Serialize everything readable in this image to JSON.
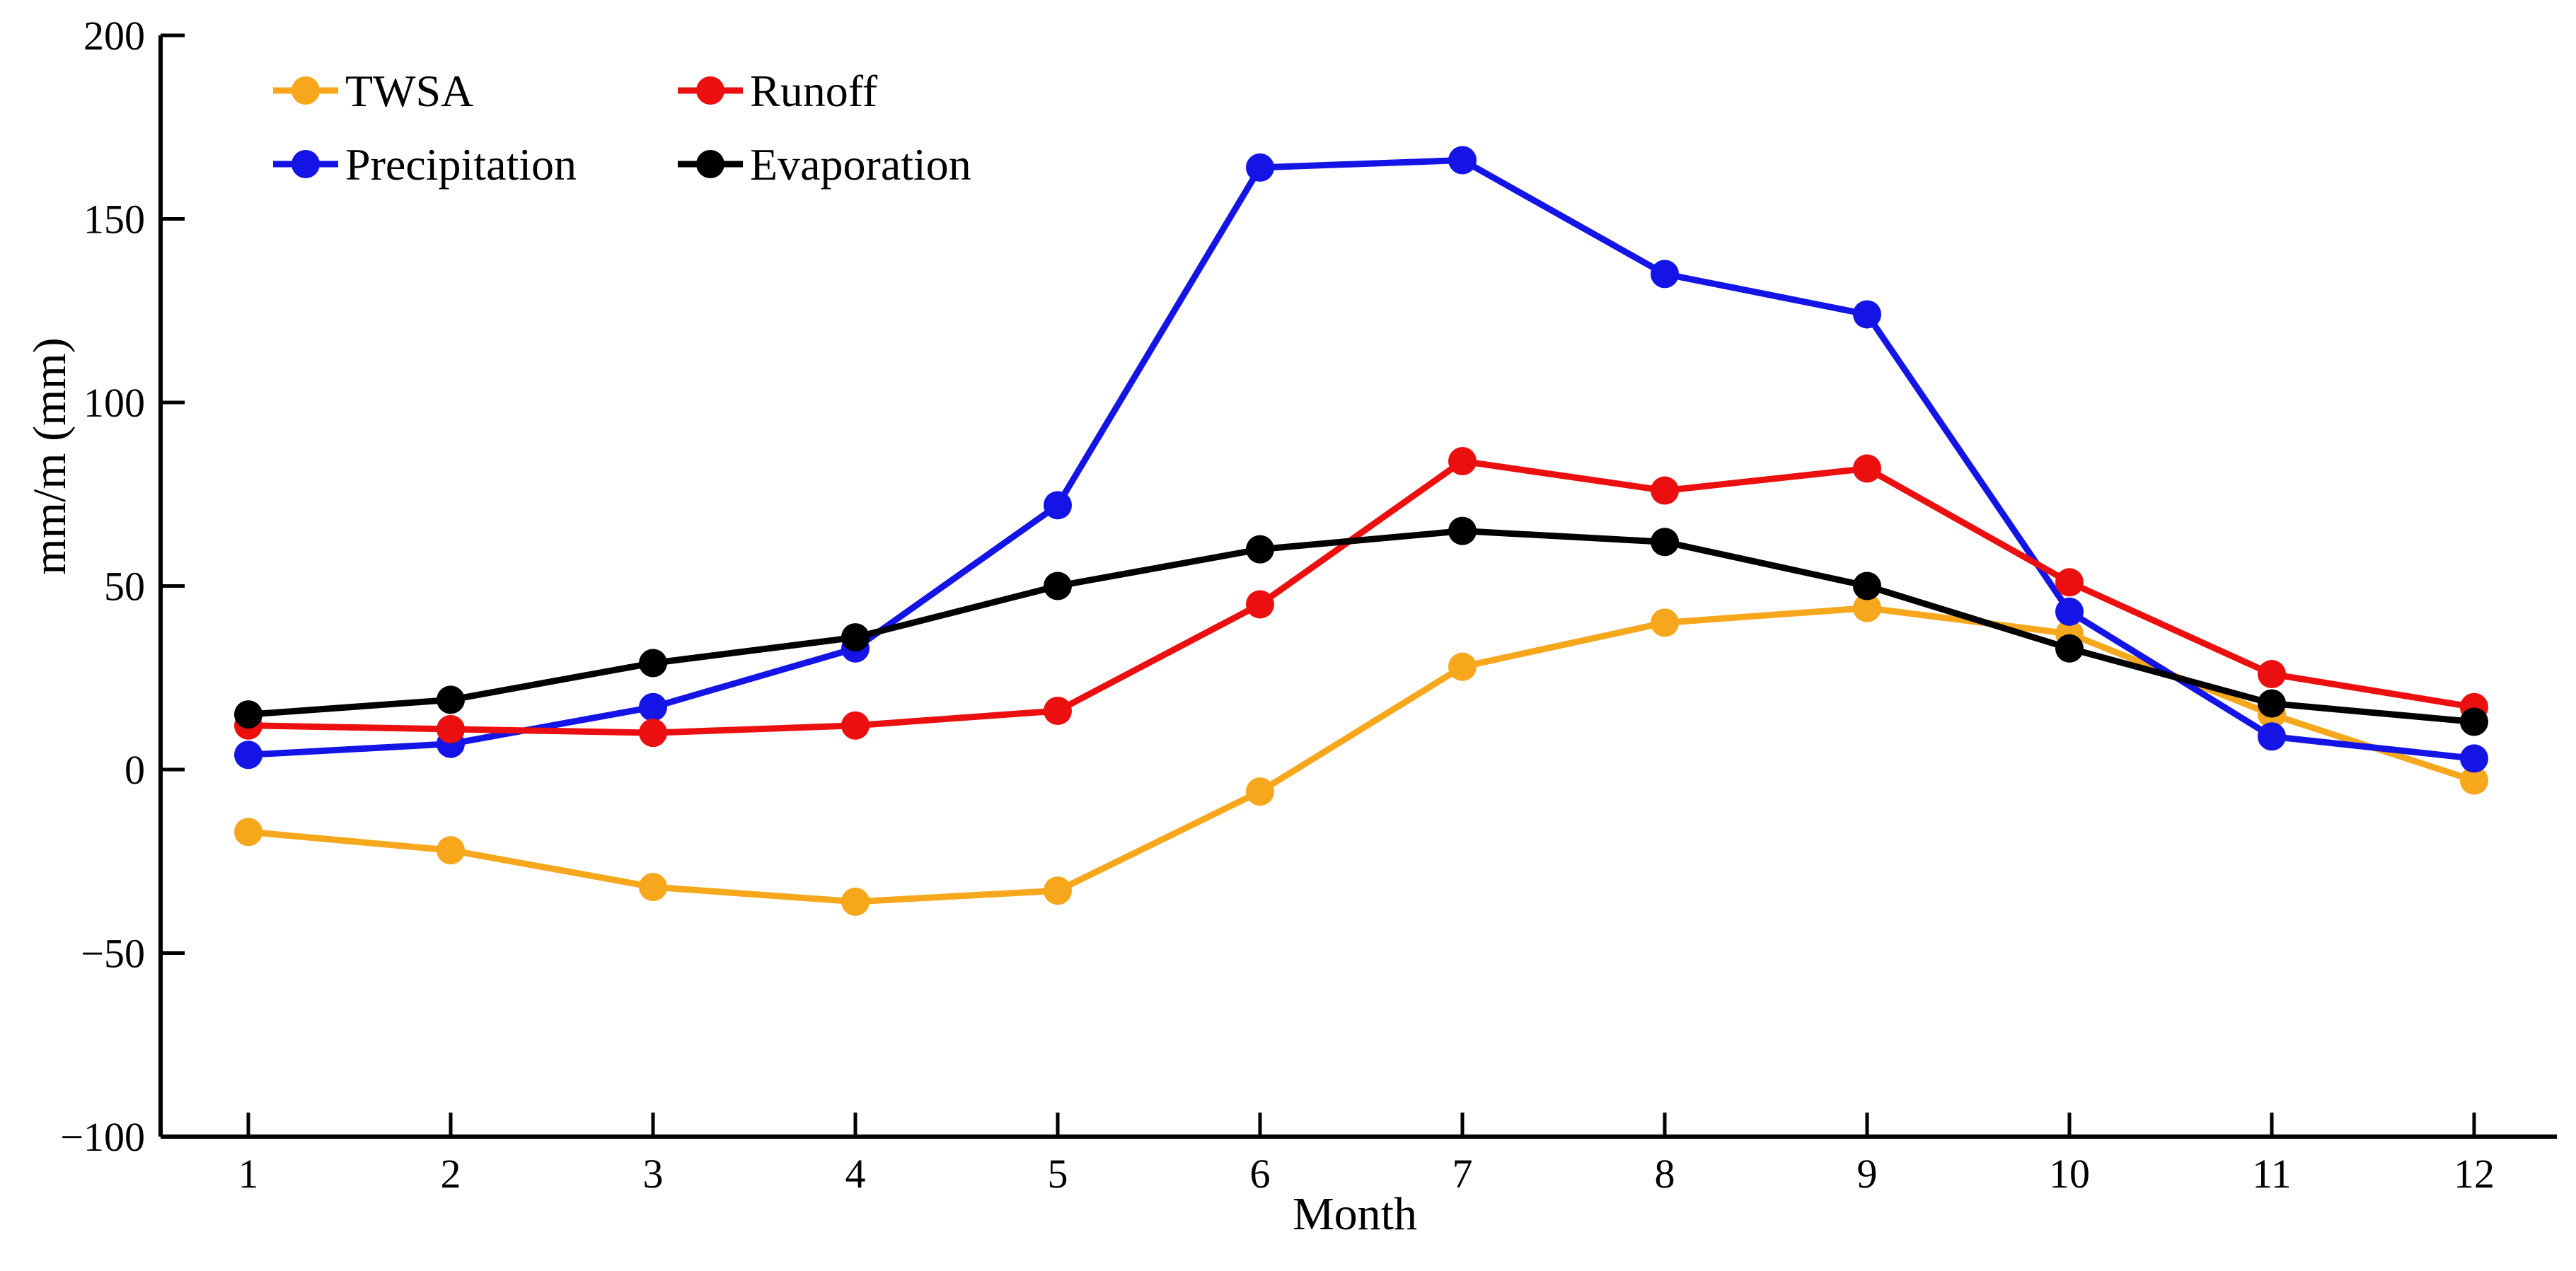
{
  "chart_data": {
    "type": "line",
    "title": "",
    "xlabel": "Month",
    "ylabel": "mm/m (mm)",
    "x": [
      1,
      2,
      3,
      4,
      5,
      6,
      7,
      8,
      9,
      10,
      11,
      12
    ],
    "xlim": [
      0.5,
      12.5
    ],
    "ylim": [
      -100,
      200
    ],
    "yticks": [
      200,
      150,
      100,
      50,
      0,
      -50,
      -100
    ],
    "xticks": [
      1,
      2,
      3,
      4,
      5,
      6,
      7,
      8,
      9,
      10,
      11,
      12
    ],
    "grid": false,
    "tick_direction": "in",
    "legend_position": "top-left",
    "legend_columns": [
      [
        "TWSA",
        "Precipitation"
      ],
      [
        "Runoff",
        "Evaporation"
      ]
    ],
    "series": [
      {
        "name": "TWSA",
        "color": "#F7A71C",
        "values": [
          -17,
          -22,
          -32,
          -36,
          -33,
          -6,
          28,
          40,
          44,
          37,
          15,
          -3
        ]
      },
      {
        "name": "Precipitation",
        "color": "#1414E6",
        "values": [
          4,
          7,
          17,
          33,
          72,
          164,
          166,
          135,
          124,
          43,
          9,
          3
        ]
      },
      {
        "name": "Runoff",
        "color": "#EC0F0F",
        "values": [
          12,
          11,
          10,
          12,
          16,
          45,
          84,
          76,
          82,
          51,
          26,
          17
        ]
      },
      {
        "name": "Evaporation",
        "color": "#000000",
        "values": [
          15,
          19,
          29,
          36,
          50,
          60,
          65,
          62,
          50,
          33,
          18,
          13
        ]
      }
    ]
  }
}
